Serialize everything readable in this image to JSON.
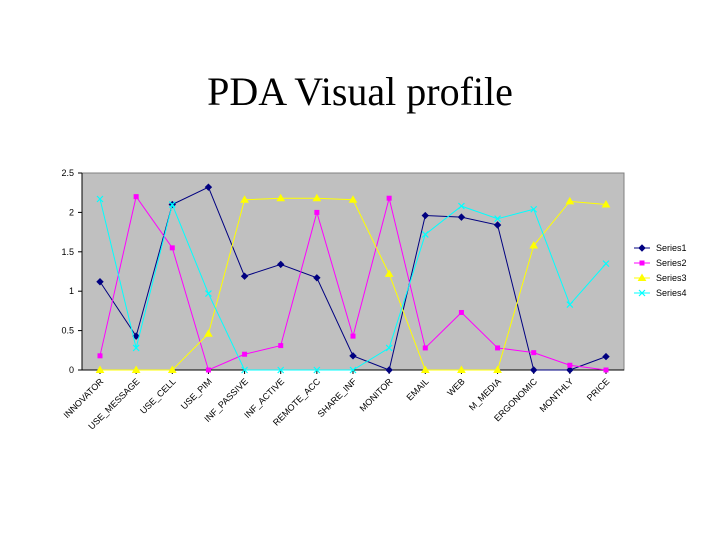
{
  "title": "PDA Visual profile",
  "chart_data": {
    "type": "line",
    "title": "PDA Visual profile",
    "xlabel": "",
    "ylabel": "",
    "ylim": [
      0,
      2.5
    ],
    "yticks": [
      "0",
      "0.5",
      "1",
      "1.5",
      "2",
      "2.5"
    ],
    "grid": false,
    "legend_position": "right",
    "categories": [
      "INNOVATOR",
      "USE_MESSAGE",
      "USE_CELL",
      "USE_PIM",
      "INF_PASSIVE",
      "INF_ACTIVE",
      "REMOTE_ACC",
      "SHARE_INF",
      "MONITOR",
      "EMAIL",
      "WEB",
      "M_MEDIA",
      "ERGONOMIC",
      "MONTHLY",
      "PRICE"
    ],
    "series": [
      {
        "name": "Series1",
        "color": "#000080",
        "marker": "diamond",
        "values": [
          1.12,
          0.43,
          2.1,
          2.32,
          1.19,
          1.34,
          1.17,
          0.18,
          0,
          1.96,
          1.94,
          1.84,
          0,
          0,
          0.17
        ]
      },
      {
        "name": "Series2",
        "color": "#ff00ff",
        "marker": "square",
        "values": [
          0.18,
          2.2,
          1.55,
          0,
          0.2,
          0.31,
          2.0,
          0.43,
          2.18,
          0.28,
          0.73,
          0.28,
          0.22,
          0.06,
          0
        ]
      },
      {
        "name": "Series3",
        "color": "#ffff00",
        "marker": "triangle",
        "values": [
          0,
          0,
          0,
          0.46,
          2.16,
          2.18,
          2.18,
          2.16,
          1.22,
          0,
          0,
          0,
          1.58,
          2.14,
          2.1
        ]
      },
      {
        "name": "Series4",
        "color": "#00ffff",
        "marker": "x",
        "values": [
          2.17,
          0.28,
          2.1,
          0.97,
          0,
          0,
          0,
          0,
          0.28,
          1.72,
          2.08,
          1.92,
          2.04,
          0.83,
          1.35
        ]
      }
    ]
  }
}
